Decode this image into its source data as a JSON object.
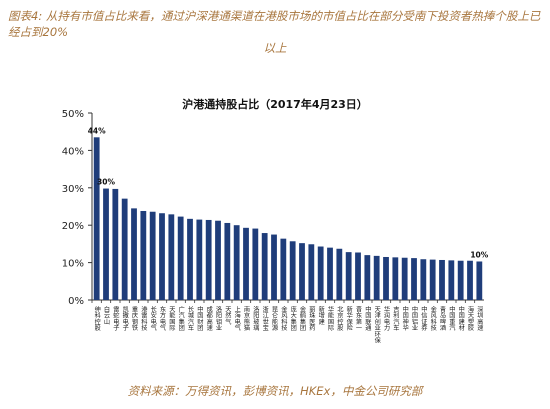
{
  "header": {
    "line1": "图表4: 从持有市值占比来看，通过沪深港通渠道在港股市场的市值占比在部分受南下投资者热捧个股上已经占到20%",
    "line2": "以上"
  },
  "footer": {
    "source": "资料来源：万得资讯，彭博资讯，HKEx，中金公司研究部"
  },
  "colors": {
    "bar": "#1f3d7a",
    "header": "#a8763e",
    "axis": "#333333"
  },
  "chart_data": {
    "type": "bar",
    "title": "沪港通持股占比（2017年4月23日）",
    "xlabel": "",
    "ylabel": "",
    "ylim": [
      0,
      0.5
    ],
    "yticks": [
      "0%",
      "10%",
      "20%",
      "30%",
      "40%",
      "50%"
    ],
    "grid": false,
    "legend": "none",
    "categories": [
      "绅科控股",
      "白云山",
      "雷蛇电子",
      "凯撒电子",
      "重庆钢铁",
      "港雷科技",
      "长安电气",
      "东方电气",
      "天能国际",
      "广汽集团",
      "长城汽车",
      "中国财团",
      "成都高速",
      "洛阳钼业",
      "天然气",
      "上海电气",
      "南京熊猫",
      "洛阳玻璃",
      "浙江世宝",
      "昆仑能源",
      "金风科技",
      "庞大集团",
      "金鹤集团",
      "丽珠医药",
      "新增建",
      "华能国际",
      "北京控股",
      "新华保险",
      "晋东第一",
      "中国联通",
      "天津创业环保",
      "华润电力",
      "吉利汽车",
      "中国神华",
      "中国铝业",
      "中信证券",
      "金风科技",
      "青岛啤酒",
      "中国重汽",
      "中国建材",
      "海天塑胶",
      "深圳高速"
    ],
    "values": [
      0.435,
      0.298,
      0.297,
      0.271,
      0.245,
      0.238,
      0.236,
      0.232,
      0.229,
      0.223,
      0.217,
      0.215,
      0.214,
      0.212,
      0.206,
      0.2,
      0.193,
      0.191,
      0.179,
      0.175,
      0.164,
      0.157,
      0.152,
      0.149,
      0.143,
      0.14,
      0.137,
      0.128,
      0.127,
      0.12,
      0.118,
      0.115,
      0.114,
      0.113,
      0.112,
      0.109,
      0.108,
      0.107,
      0.106,
      0.105,
      0.105,
      0.103
    ],
    "data_labels": [
      {
        "index": 0,
        "text": "44%"
      },
      {
        "index": 1,
        "text": "30%"
      },
      {
        "index": 41,
        "text": "10%"
      }
    ]
  }
}
